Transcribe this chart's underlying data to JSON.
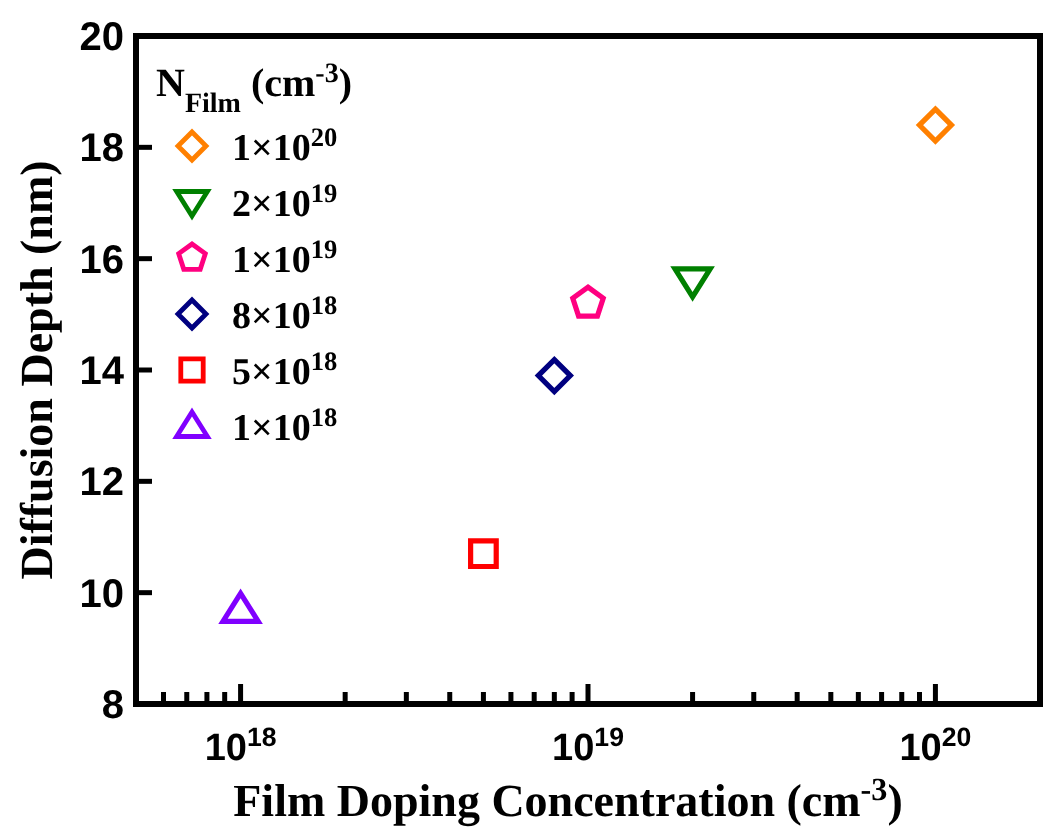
{
  "chart_data": {
    "type": "scatter",
    "xlabel": "Film Doping Concentration (cm$^{-3}$)",
    "ylabel": "Diffusion Depth (nm)",
    "legend_title": "N$_{Film}$ (cm$^{-3}$)",
    "legend": "top left",
    "log": "x",
    "grid": false,
    "xlim": [
      5e+17,
      2e+20
    ],
    "ylim": [
      8,
      20
    ],
    "yticks": [
      8,
      10,
      12,
      14,
      16,
      18,
      20
    ],
    "xticks": [
      {
        "value": 5e+17,
        "label": null
      },
      {
        "value": 6e+17,
        "label": null
      },
      {
        "value": 7e+17,
        "label": null
      },
      {
        "value": 8e+17,
        "label": null
      },
      {
        "value": 9e+17,
        "label": null
      },
      {
        "value": 1e+18,
        "label": "10$^{18}$"
      },
      {
        "value": 2e+18,
        "label": null
      },
      {
        "value": 3e+18,
        "label": null
      },
      {
        "value": 4e+18,
        "label": null
      },
      {
        "value": 5e+18,
        "label": null
      },
      {
        "value": 6e+18,
        "label": null
      },
      {
        "value": 7e+18,
        "label": null
      },
      {
        "value": 8e+18,
        "label": null
      },
      {
        "value": 9e+18,
        "label": null
      },
      {
        "value": 1e+19,
        "label": "10$^{19}$"
      },
      {
        "value": 2e+19,
        "label": null
      },
      {
        "value": 3e+19,
        "label": null
      },
      {
        "value": 4e+19,
        "label": null
      },
      {
        "value": 5e+19,
        "label": null
      },
      {
        "value": 6e+19,
        "label": null
      },
      {
        "value": 7e+19,
        "label": null
      },
      {
        "value": 8e+19,
        "label": null
      },
      {
        "value": 9e+19,
        "label": null
      },
      {
        "value": 1e+20,
        "label": "10$^{20}$"
      }
    ],
    "series": [
      {
        "name": "1×10$^{20}$",
        "color": "#ff8000",
        "marker": "diamond",
        "x": [
          1e+20
        ],
        "values": [
          18.4
        ]
      },
      {
        "name": "2×10$^{19}$",
        "color": "#008000",
        "marker": "triangle-down",
        "x": [
          2e+19
        ],
        "values": [
          15.6
        ]
      },
      {
        "name": "1×10$^{19}$",
        "color": "#ff0080",
        "x": [
          1e+19
        ],
        "values": [
          15.2
        ]
      },
      {
        "name": "8×10$^{18}$",
        "color": "#000080",
        "marker": "diamond",
        "x": [
          8e+18
        ],
        "values": [
          13.9
        ]
      },
      {
        "name": "5×10$^{18}$",
        "color": "#ff0000",
        "marker": "square",
        "x": [
          5e+18
        ],
        "values": [
          10.7
        ]
      },
      {
        "name": "1×10$^{18}$",
        "color": "#8000ff",
        "marker": "triangle",
        "x": [
          1e+18
        ],
        "values": [
          9.7
        ]
      }
    ]
  }
}
